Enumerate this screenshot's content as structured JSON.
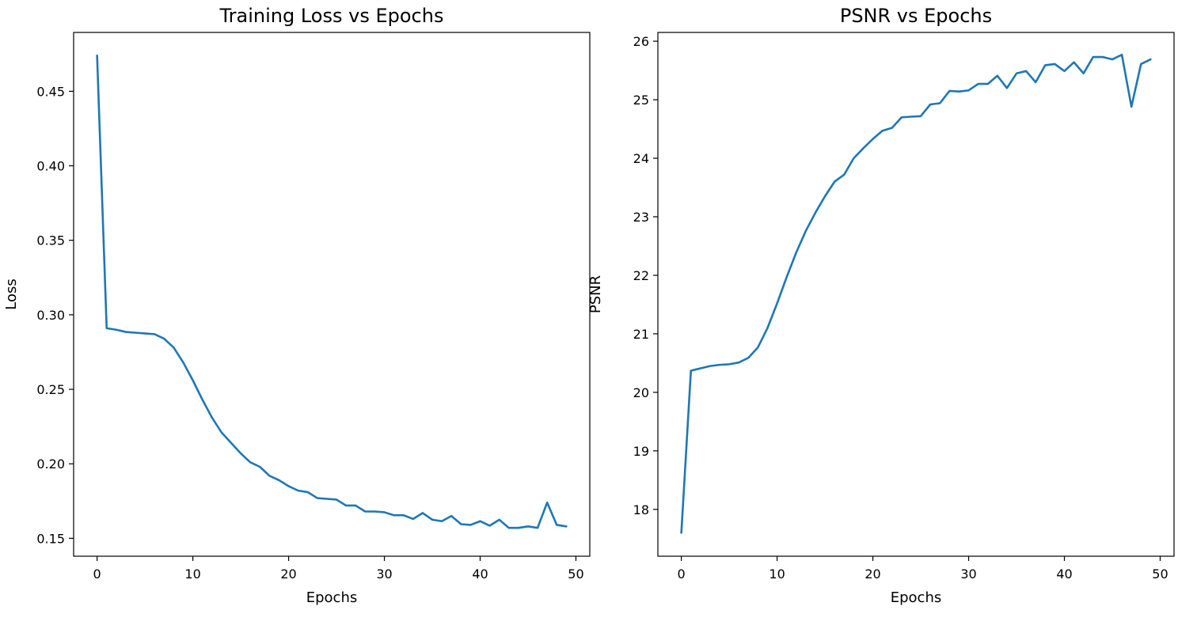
{
  "chart_data": [
    {
      "type": "line",
      "title": "Training Loss vs Epochs",
      "xlabel": "Epochs",
      "ylabel": "Loss",
      "xlim": [
        -2.45,
        51.45
      ],
      "ylim": [
        0.138,
        0.4895
      ],
      "xticks": [
        0,
        10,
        20,
        30,
        40,
        50
      ],
      "yticks": [
        0.15,
        0.2,
        0.25,
        0.3,
        0.35,
        0.4,
        0.45
      ],
      "ytick_labels": [
        "0.15",
        "0.20",
        "0.25",
        "0.30",
        "0.35",
        "0.40",
        "0.45"
      ],
      "grid": false,
      "color": "#1f77b4",
      "x": [
        0,
        1,
        2,
        3,
        4,
        5,
        6,
        7,
        8,
        9,
        10,
        11,
        12,
        13,
        14,
        15,
        16,
        17,
        18,
        19,
        20,
        21,
        22,
        23,
        24,
        25,
        26,
        27,
        28,
        29,
        30,
        31,
        32,
        33,
        34,
        35,
        36,
        37,
        38,
        39,
        40,
        41,
        42,
        43,
        44,
        45,
        46,
        47,
        48,
        49
      ],
      "y": [
        0.474,
        0.291,
        0.29,
        0.2885,
        0.288,
        0.2875,
        0.287,
        0.284,
        0.278,
        0.268,
        0.256,
        0.243,
        0.231,
        0.221,
        0.214,
        0.207,
        0.201,
        0.198,
        0.192,
        0.189,
        0.185,
        0.182,
        0.181,
        0.177,
        0.1765,
        0.176,
        0.172,
        0.172,
        0.168,
        0.168,
        0.1675,
        0.1655,
        0.1655,
        0.163,
        0.167,
        0.1625,
        0.1615,
        0.165,
        0.1595,
        0.159,
        0.1615,
        0.1585,
        0.1625,
        0.157,
        0.157,
        0.158,
        0.157,
        0.174,
        0.159,
        0.158
      ]
    },
    {
      "type": "line",
      "title": "PSNR vs Epochs",
      "xlabel": "Epochs",
      "ylabel": "PSNR",
      "xlim": [
        -2.45,
        51.45
      ],
      "ylim": [
        17.2,
        26.15
      ],
      "xticks": [
        0,
        10,
        20,
        30,
        40,
        50
      ],
      "yticks": [
        18,
        19,
        20,
        21,
        22,
        23,
        24,
        25,
        26
      ],
      "ytick_labels": [
        "18",
        "19",
        "20",
        "21",
        "22",
        "23",
        "24",
        "25",
        "26"
      ],
      "grid": false,
      "color": "#1f77b4",
      "x": [
        0,
        1,
        2,
        3,
        4,
        5,
        6,
        7,
        8,
        9,
        10,
        11,
        12,
        13,
        14,
        15,
        16,
        17,
        18,
        19,
        20,
        21,
        22,
        23,
        24,
        25,
        26,
        27,
        28,
        29,
        30,
        31,
        32,
        33,
        34,
        35,
        36,
        37,
        38,
        39,
        40,
        41,
        42,
        43,
        44,
        45,
        46,
        47,
        48,
        49
      ],
      "y": [
        17.6,
        20.37,
        20.41,
        20.45,
        20.47,
        20.48,
        20.51,
        20.59,
        20.77,
        21.1,
        21.52,
        21.97,
        22.39,
        22.76,
        23.07,
        23.35,
        23.6,
        23.72,
        24.0,
        24.17,
        24.33,
        24.47,
        24.52,
        24.7,
        24.71,
        24.72,
        24.92,
        24.94,
        25.15,
        25.14,
        25.16,
        25.27,
        25.27,
        25.41,
        25.2,
        25.45,
        25.49,
        25.3,
        25.59,
        25.61,
        25.49,
        25.64,
        25.45,
        25.73,
        25.73,
        25.69,
        25.77,
        24.88,
        25.61,
        25.69
      ]
    }
  ]
}
